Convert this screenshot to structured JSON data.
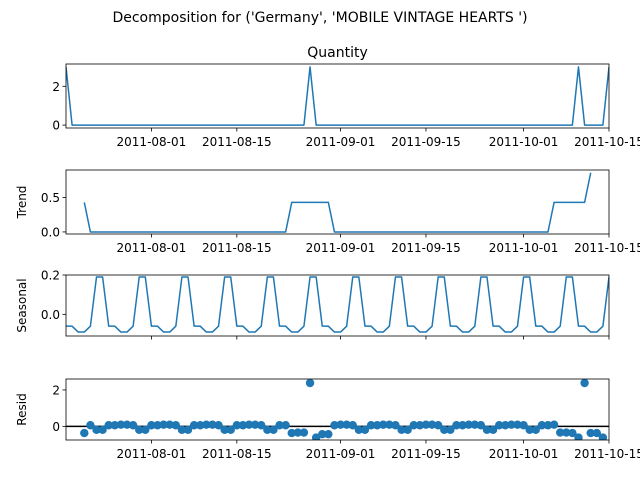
{
  "figure": {
    "title": "Decomposition for ('Germany', 'MOBILE VINTAGE HEARTS ')"
  },
  "chart_data": {
    "type": "line",
    "x_ticks": [
      "2011-08-01",
      "2011-08-15",
      "2011-09-01",
      "2011-09-15",
      "2011-10-01",
      "2011-10-15"
    ],
    "x_start": "2011-07-18",
    "x_count": 90,
    "colors": {
      "series": "#1f77b4",
      "axes": "#000000"
    },
    "panels": [
      {
        "key": "observed",
        "title": "Quantity",
        "ylabel": "",
        "style": "line",
        "ylim": [
          -0.15,
          3.15
        ],
        "yticks": [
          0,
          2
        ],
        "values": [
          3,
          0,
          0,
          0,
          0,
          0,
          0,
          0,
          0,
          0,
          0,
          0,
          0,
          0,
          0,
          0,
          0,
          0,
          0,
          0,
          0,
          0,
          0,
          0,
          0,
          0,
          0,
          0,
          0,
          0,
          0,
          0,
          0,
          0,
          0,
          0,
          0,
          0,
          0,
          0,
          3,
          0,
          0,
          0,
          0,
          0,
          0,
          0,
          0,
          0,
          0,
          0,
          0,
          0,
          0,
          0,
          0,
          0,
          0,
          0,
          0,
          0,
          0,
          0,
          0,
          0,
          0,
          0,
          0,
          0,
          0,
          0,
          0,
          0,
          0,
          0,
          0,
          0,
          0,
          0,
          0,
          0,
          0,
          0,
          3,
          0,
          0,
          0,
          0,
          3
        ]
      },
      {
        "key": "trend",
        "title": "",
        "ylabel": "Trend",
        "style": "line",
        "ylim": [
          -0.03,
          0.9
        ],
        "yticks": [
          0.0,
          0.5
        ],
        "values": [
          null,
          null,
          null,
          0.43,
          0,
          0,
          0,
          0,
          0,
          0,
          0,
          0,
          0,
          0,
          0,
          0,
          0,
          0,
          0,
          0,
          0,
          0,
          0,
          0,
          0,
          0,
          0,
          0,
          0,
          0,
          0,
          0,
          0,
          0,
          0,
          0,
          0,
          0.43,
          0.43,
          0.43,
          0.43,
          0.43,
          0.43,
          0.43,
          0,
          0,
          0,
          0,
          0,
          0,
          0,
          0,
          0,
          0,
          0,
          0,
          0,
          0,
          0,
          0,
          0,
          0,
          0,
          0,
          0,
          0,
          0,
          0,
          0,
          0,
          0,
          0,
          0,
          0,
          0,
          0,
          0,
          0,
          0,
          0,
          0.43,
          0.43,
          0.43,
          0.43,
          0.43,
          0.43,
          0.86,
          null,
          null,
          null
        ]
      },
      {
        "key": "seasonal",
        "title": "",
        "ylabel": "Seasonal",
        "style": "line",
        "ylim": [
          -0.11,
          0.2
        ],
        "yticks": [
          0.0,
          0.2
        ],
        "pattern": [
          -0.06,
          -0.06,
          -0.09,
          -0.09,
          -0.06,
          0.19,
          0.19
        ],
        "values_note": "",
        "values": []
      },
      {
        "key": "resid",
        "title": "",
        "ylabel": "Resid",
        "style": "scatter",
        "ylim": [
          -0.75,
          2.6
        ],
        "yticks": [
          0,
          2
        ],
        "zero_line": true,
        "values": [
          null,
          null,
          null,
          -0.37,
          0.06,
          -0.19,
          -0.19,
          0.06,
          0.06,
          0.09,
          0.09,
          0.06,
          -0.19,
          -0.19,
          0.06,
          0.06,
          0.09,
          0.09,
          0.06,
          -0.19,
          -0.19,
          0.06,
          0.06,
          0.09,
          0.09,
          0.06,
          -0.19,
          -0.19,
          0.06,
          0.06,
          0.09,
          0.09,
          0.06,
          -0.19,
          -0.19,
          0.06,
          0.06,
          -0.37,
          -0.34,
          -0.34,
          2.38,
          -0.62,
          -0.43,
          -0.43,
          0.06,
          0.09,
          0.09,
          0.06,
          -0.19,
          -0.19,
          0.06,
          0.06,
          0.09,
          0.09,
          0.06,
          -0.19,
          -0.19,
          0.06,
          0.06,
          0.09,
          0.09,
          0.06,
          -0.19,
          -0.19,
          0.06,
          0.06,
          0.09,
          0.09,
          0.06,
          -0.19,
          -0.19,
          0.06,
          0.06,
          0.09,
          0.09,
          0.06,
          -0.19,
          -0.19,
          0.06,
          0.06,
          0.09,
          -0.34,
          -0.34,
          -0.37,
          -0.62,
          2.38,
          -0.37,
          -0.37,
          -0.62,
          null
        ]
      }
    ]
  }
}
